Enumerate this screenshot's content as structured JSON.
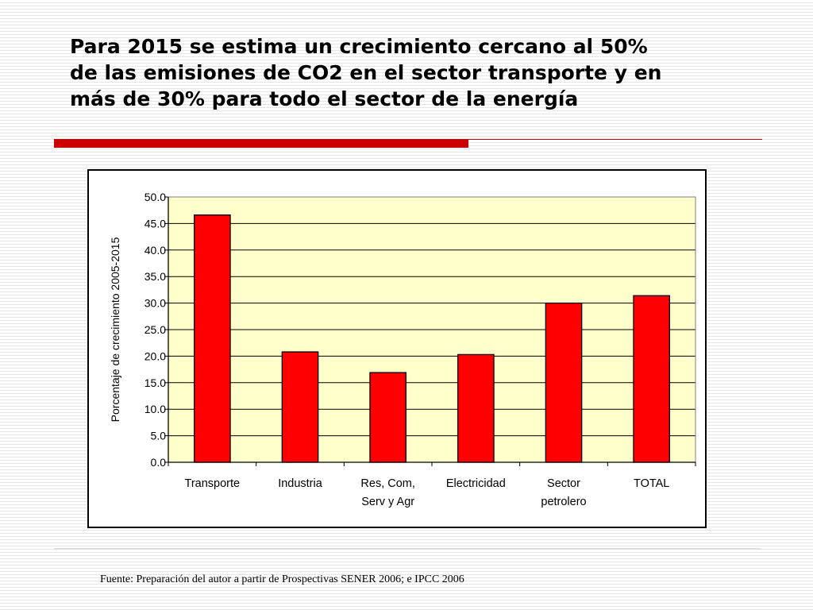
{
  "slide": {
    "title_lines": [
      "Para 2015 se estima un crecimiento cercano al 50%",
      "de las emisiones de CO2 en el sector transporte y en",
      "más de 30%  para todo el sector de la energía"
    ],
    "source": "Fuente: Preparación del autor a partir de Prospectivas SENER 2006; e IPCC 2006"
  },
  "colors": {
    "accent": "#cc0000",
    "bar_fill": "#ff0000",
    "plot_background": "#ffffcc"
  },
  "chart_data": {
    "type": "bar",
    "title": "",
    "xlabel": "",
    "ylabel": "Porcentaje de crecimiento 2005-2015",
    "categories": [
      [
        "Transporte"
      ],
      [
        "Industria"
      ],
      [
        "Res, Com,",
        "Serv y Agr"
      ],
      [
        "Electricidad"
      ],
      [
        "Sector",
        "petrolero"
      ],
      [
        "TOTAL"
      ]
    ],
    "values": [
      46.6,
      20.8,
      16.9,
      20.3,
      30.0,
      31.4
    ],
    "ylim": [
      0,
      50
    ],
    "yticks": [
      "0.0",
      "5.0",
      "10.0",
      "15.0",
      "20.0",
      "25.0",
      "30.0",
      "35.0",
      "40.0",
      "45.0",
      "50.0"
    ],
    "grid": true,
    "legend": "none"
  }
}
